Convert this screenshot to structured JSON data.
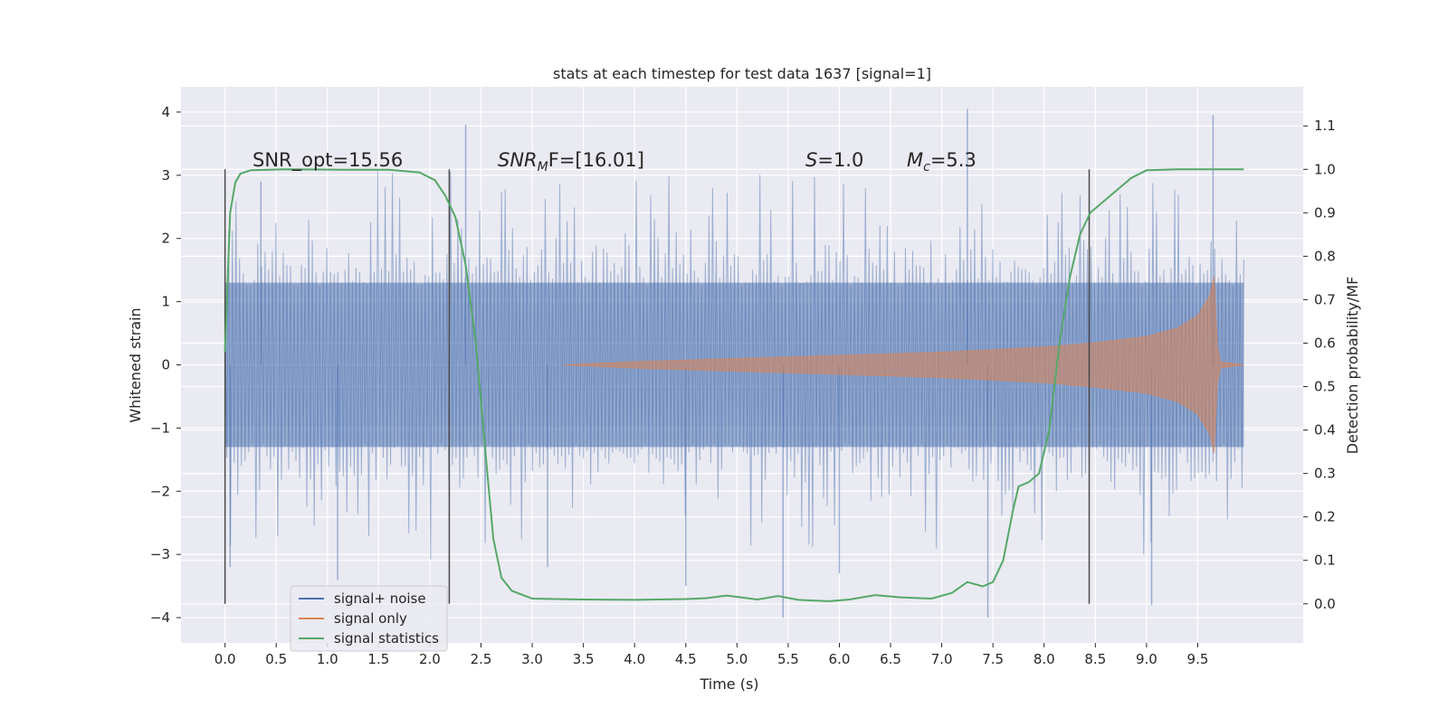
{
  "chart_data": {
    "type": "line",
    "title": "stats at each timestep for test data 1637 [signal=1]",
    "xlabel": "Time (s)",
    "ylabel": "Whitened strain",
    "y2label": "Detection probability/MF",
    "xlim": [
      -0.43,
      10.53
    ],
    "ylim": [
      -4.4,
      4.4
    ],
    "y2lim": [
      -0.09,
      1.19
    ],
    "x_ticks": [
      "0.0",
      "0.5",
      "1.0",
      "1.5",
      "2.0",
      "2.5",
      "3.0",
      "3.5",
      "4.0",
      "4.5",
      "5.0",
      "5.5",
      "6.0",
      "6.5",
      "7.0",
      "7.5",
      "8.0",
      "8.5",
      "9.0",
      "9.5"
    ],
    "y_ticks": [
      "4",
      "3",
      "2",
      "1",
      "0",
      "−1",
      "−2",
      "−3",
      "−4"
    ],
    "y2_ticks": [
      "1.1",
      "1.0",
      "0.9",
      "0.8",
      "0.7",
      "0.6",
      "0.5",
      "0.4",
      "0.3",
      "0.2",
      "0.1",
      "0.0"
    ],
    "grid": true,
    "legend_position": "lower-left",
    "annotations": {
      "snr_opt": "SNR_opt=15.56",
      "snr_mf_main": "SNR",
      "snr_mf_sub": "M",
      "snr_mf_rest": "F=[16.01]",
      "s_main": "S",
      "s_rest": "=1.0",
      "mc_main": "M",
      "mc_sub": "c",
      "mc_rest": "=5.3"
    },
    "vlines_x": [
      0.0,
      2.19,
      8.44
    ],
    "series": [
      {
        "name": "signal+ noise",
        "color": "#4c72b0",
        "t_range": [
          0.0,
          9.95
        ],
        "core_amplitude": 1.3,
        "peak_extremes": [
          [
            0.05,
            -3.2
          ],
          [
            0.35,
            2.9
          ],
          [
            1.1,
            -3.4
          ],
          [
            2.35,
            3.8
          ],
          [
            3.15,
            -3.2
          ],
          [
            4.5,
            -3.5
          ],
          [
            5.45,
            -4.0
          ],
          [
            6.0,
            -3.3
          ],
          [
            7.25,
            4.05
          ],
          [
            7.45,
            -4.0
          ],
          [
            9.05,
            -3.8
          ],
          [
            9.65,
            3.95
          ]
        ]
      },
      {
        "name": "signal only",
        "color": "#dd8452",
        "envelope": [
          [
            3.3,
            0.0
          ],
          [
            4.0,
            0.05
          ],
          [
            5.0,
            0.1
          ],
          [
            6.0,
            0.15
          ],
          [
            7.0,
            0.2
          ],
          [
            8.0,
            0.28
          ],
          [
            8.5,
            0.35
          ],
          [
            9.0,
            0.45
          ],
          [
            9.3,
            0.58
          ],
          [
            9.5,
            0.78
          ],
          [
            9.62,
            1.1
          ],
          [
            9.66,
            1.4
          ],
          [
            9.69,
            0.3
          ],
          [
            9.72,
            0.05
          ],
          [
            9.95,
            0.0
          ]
        ]
      },
      {
        "name": "signal statistics",
        "color": "#55a868",
        "points": [
          [
            0.0,
            0.58
          ],
          [
            0.05,
            0.9
          ],
          [
            0.1,
            0.97
          ],
          [
            0.15,
            0.99
          ],
          [
            0.25,
            0.998
          ],
          [
            0.6,
            1.0
          ],
          [
            1.2,
            0.999
          ],
          [
            1.6,
            0.999
          ],
          [
            1.9,
            0.993
          ],
          [
            2.05,
            0.975
          ],
          [
            2.15,
            0.94
          ],
          [
            2.25,
            0.89
          ],
          [
            2.35,
            0.78
          ],
          [
            2.45,
            0.6
          ],
          [
            2.55,
            0.33
          ],
          [
            2.62,
            0.15
          ],
          [
            2.7,
            0.06
          ],
          [
            2.8,
            0.03
          ],
          [
            3.0,
            0.012
          ],
          [
            3.5,
            0.01
          ],
          [
            4.0,
            0.009
          ],
          [
            4.5,
            0.011
          ],
          [
            4.7,
            0.013
          ],
          [
            4.9,
            0.019
          ],
          [
            5.2,
            0.01
          ],
          [
            5.4,
            0.018
          ],
          [
            5.6,
            0.009
          ],
          [
            5.9,
            0.006
          ],
          [
            6.1,
            0.01
          ],
          [
            6.35,
            0.02
          ],
          [
            6.6,
            0.015
          ],
          [
            6.9,
            0.012
          ],
          [
            7.1,
            0.025
          ],
          [
            7.25,
            0.05
          ],
          [
            7.4,
            0.04
          ],
          [
            7.5,
            0.05
          ],
          [
            7.6,
            0.1
          ],
          [
            7.7,
            0.22
          ],
          [
            7.75,
            0.27
          ],
          [
            7.85,
            0.28
          ],
          [
            7.95,
            0.3
          ],
          [
            8.05,
            0.4
          ],
          [
            8.15,
            0.6
          ],
          [
            8.25,
            0.75
          ],
          [
            8.35,
            0.85
          ],
          [
            8.45,
            0.9
          ],
          [
            8.6,
            0.93
          ],
          [
            8.75,
            0.96
          ],
          [
            8.85,
            0.98
          ],
          [
            9.0,
            0.998
          ],
          [
            9.3,
            1.0
          ],
          [
            9.95,
            1.0
          ]
        ]
      }
    ]
  }
}
